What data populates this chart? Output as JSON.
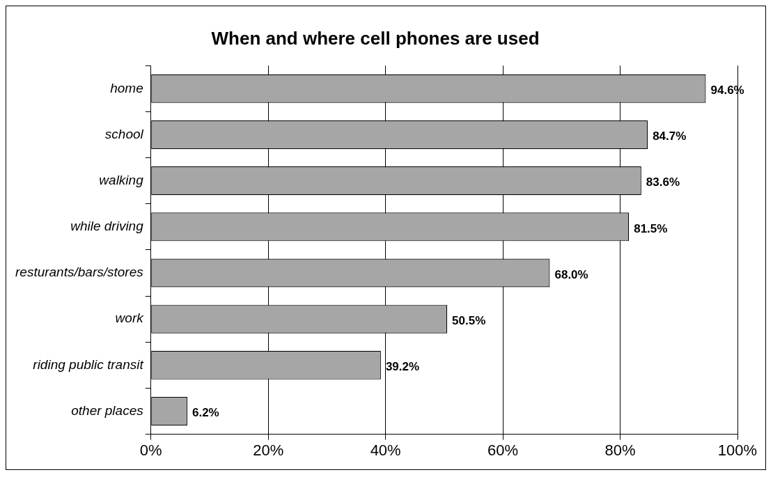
{
  "chart_data": {
    "type": "bar",
    "orientation": "horizontal",
    "title": "When and where cell phones are used",
    "categories": [
      "home",
      "school",
      "walking",
      "while driving",
      "resturants/bars/stores",
      "work",
      "riding public transit",
      "other places"
    ],
    "values": [
      94.6,
      84.7,
      83.6,
      81.5,
      68.0,
      50.5,
      39.2,
      6.2
    ],
    "value_labels": [
      "94.6%",
      "84.7%",
      "83.6%",
      "81.5%",
      "68.0%",
      "50.5%",
      "39.2%",
      "6.2%"
    ],
    "color": "#a6a6a6",
    "xlim": [
      0,
      100
    ],
    "xticks": [
      {
        "value": 0,
        "label": "0%"
      },
      {
        "value": 20,
        "label": "20%"
      },
      {
        "value": 40,
        "label": "40%"
      },
      {
        "value": 60,
        "label": "60%"
      },
      {
        "value": 80,
        "label": "80%"
      },
      {
        "value": 100,
        "label": "100%"
      }
    ],
    "grid": "x",
    "legend": false
  }
}
